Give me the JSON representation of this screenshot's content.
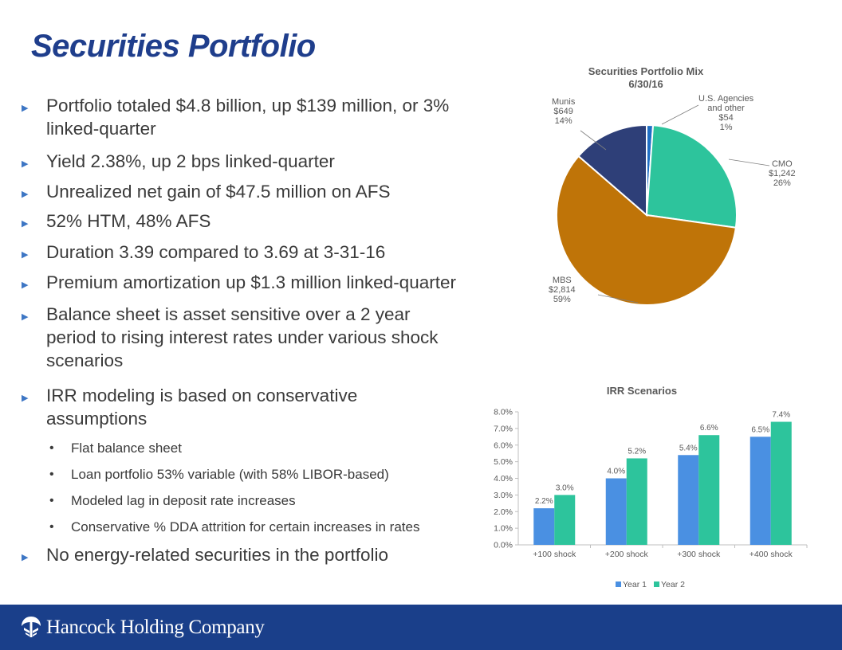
{
  "page": {
    "title": "Securities Portfolio"
  },
  "bullets": [
    {
      "text": "Portfolio totaled $4.8 billion, up $139 million, or 3%\nlinked-quarter"
    },
    {
      "text": "Yield 2.38%, up 2 bps linked-quarter"
    },
    {
      "text": "Unrealized net gain of $47.5 million on AFS"
    },
    {
      "text": "52% HTM, 48% AFS"
    },
    {
      "text": "Duration 3.39 compared to 3.69 at 3-31-16"
    },
    {
      "text": "Premium amortization up $1.3 million linked-quarter"
    },
    {
      "text": "Balance sheet is asset sensitive over a 2 year\nperiod to rising interest rates under various shock\nscenarios"
    },
    {
      "text": "IRR modeling is based on conservative\nassumptions"
    },
    {
      "text": "No energy-related securities in the portfolio"
    }
  ],
  "sub_bullets": [
    {
      "text": "Flat balance sheet"
    },
    {
      "text": "Loan portfolio 53% variable (with 58% LIBOR-based)"
    },
    {
      "text": "Modeled lag in deposit rate increases"
    },
    {
      "text": "Conservative % DDA attrition for certain increases in rates"
    }
  ],
  "chart_data": [
    {
      "type": "pie",
      "title": "Securities  Portfolio  Mix",
      "subtitle": "6/30/16",
      "slices": [
        {
          "name": "U.S. Agencies and other",
          "label_lines": [
            "U.S. Agencies",
            "and other",
            "$54",
            "1%"
          ],
          "value": 54,
          "percent": "1%",
          "color": "#1f6fc5"
        },
        {
          "name": "CMO",
          "label_lines": [
            "CMO",
            "$1,242",
            "26%"
          ],
          "value": 1242,
          "percent": "26%",
          "color": "#2dc49c"
        },
        {
          "name": "MBS",
          "label_lines": [
            "MBS",
            "$2,814",
            "59%"
          ],
          "value": 2814,
          "percent": "59%",
          "color": "#bf7408"
        },
        {
          "name": "Munis",
          "label_lines": [
            "Munis",
            "$649",
            "14%"
          ],
          "value": 649,
          "percent": "14%",
          "color": "#2e3f78"
        }
      ]
    },
    {
      "type": "bar",
      "title": "IRR Scenarios",
      "categories": [
        "+100 shock",
        "+200 shock",
        "+300 shock",
        "+400 shock"
      ],
      "series": [
        {
          "name": "Year 1",
          "values": [
            2.2,
            4.0,
            5.4,
            6.5
          ],
          "color": "#4a90e2"
        },
        {
          "name": "Year 2",
          "values": [
            3.0,
            5.2,
            6.6,
            7.4
          ],
          "color": "#2dc49c"
        }
      ],
      "ylim": [
        0,
        8
      ],
      "yticks": [
        0,
        1,
        2,
        3,
        4,
        5,
        6,
        7,
        8
      ],
      "value_format": "%",
      "legend": "bottom"
    }
  ],
  "footer": {
    "company": "Hancock Holding Company"
  }
}
